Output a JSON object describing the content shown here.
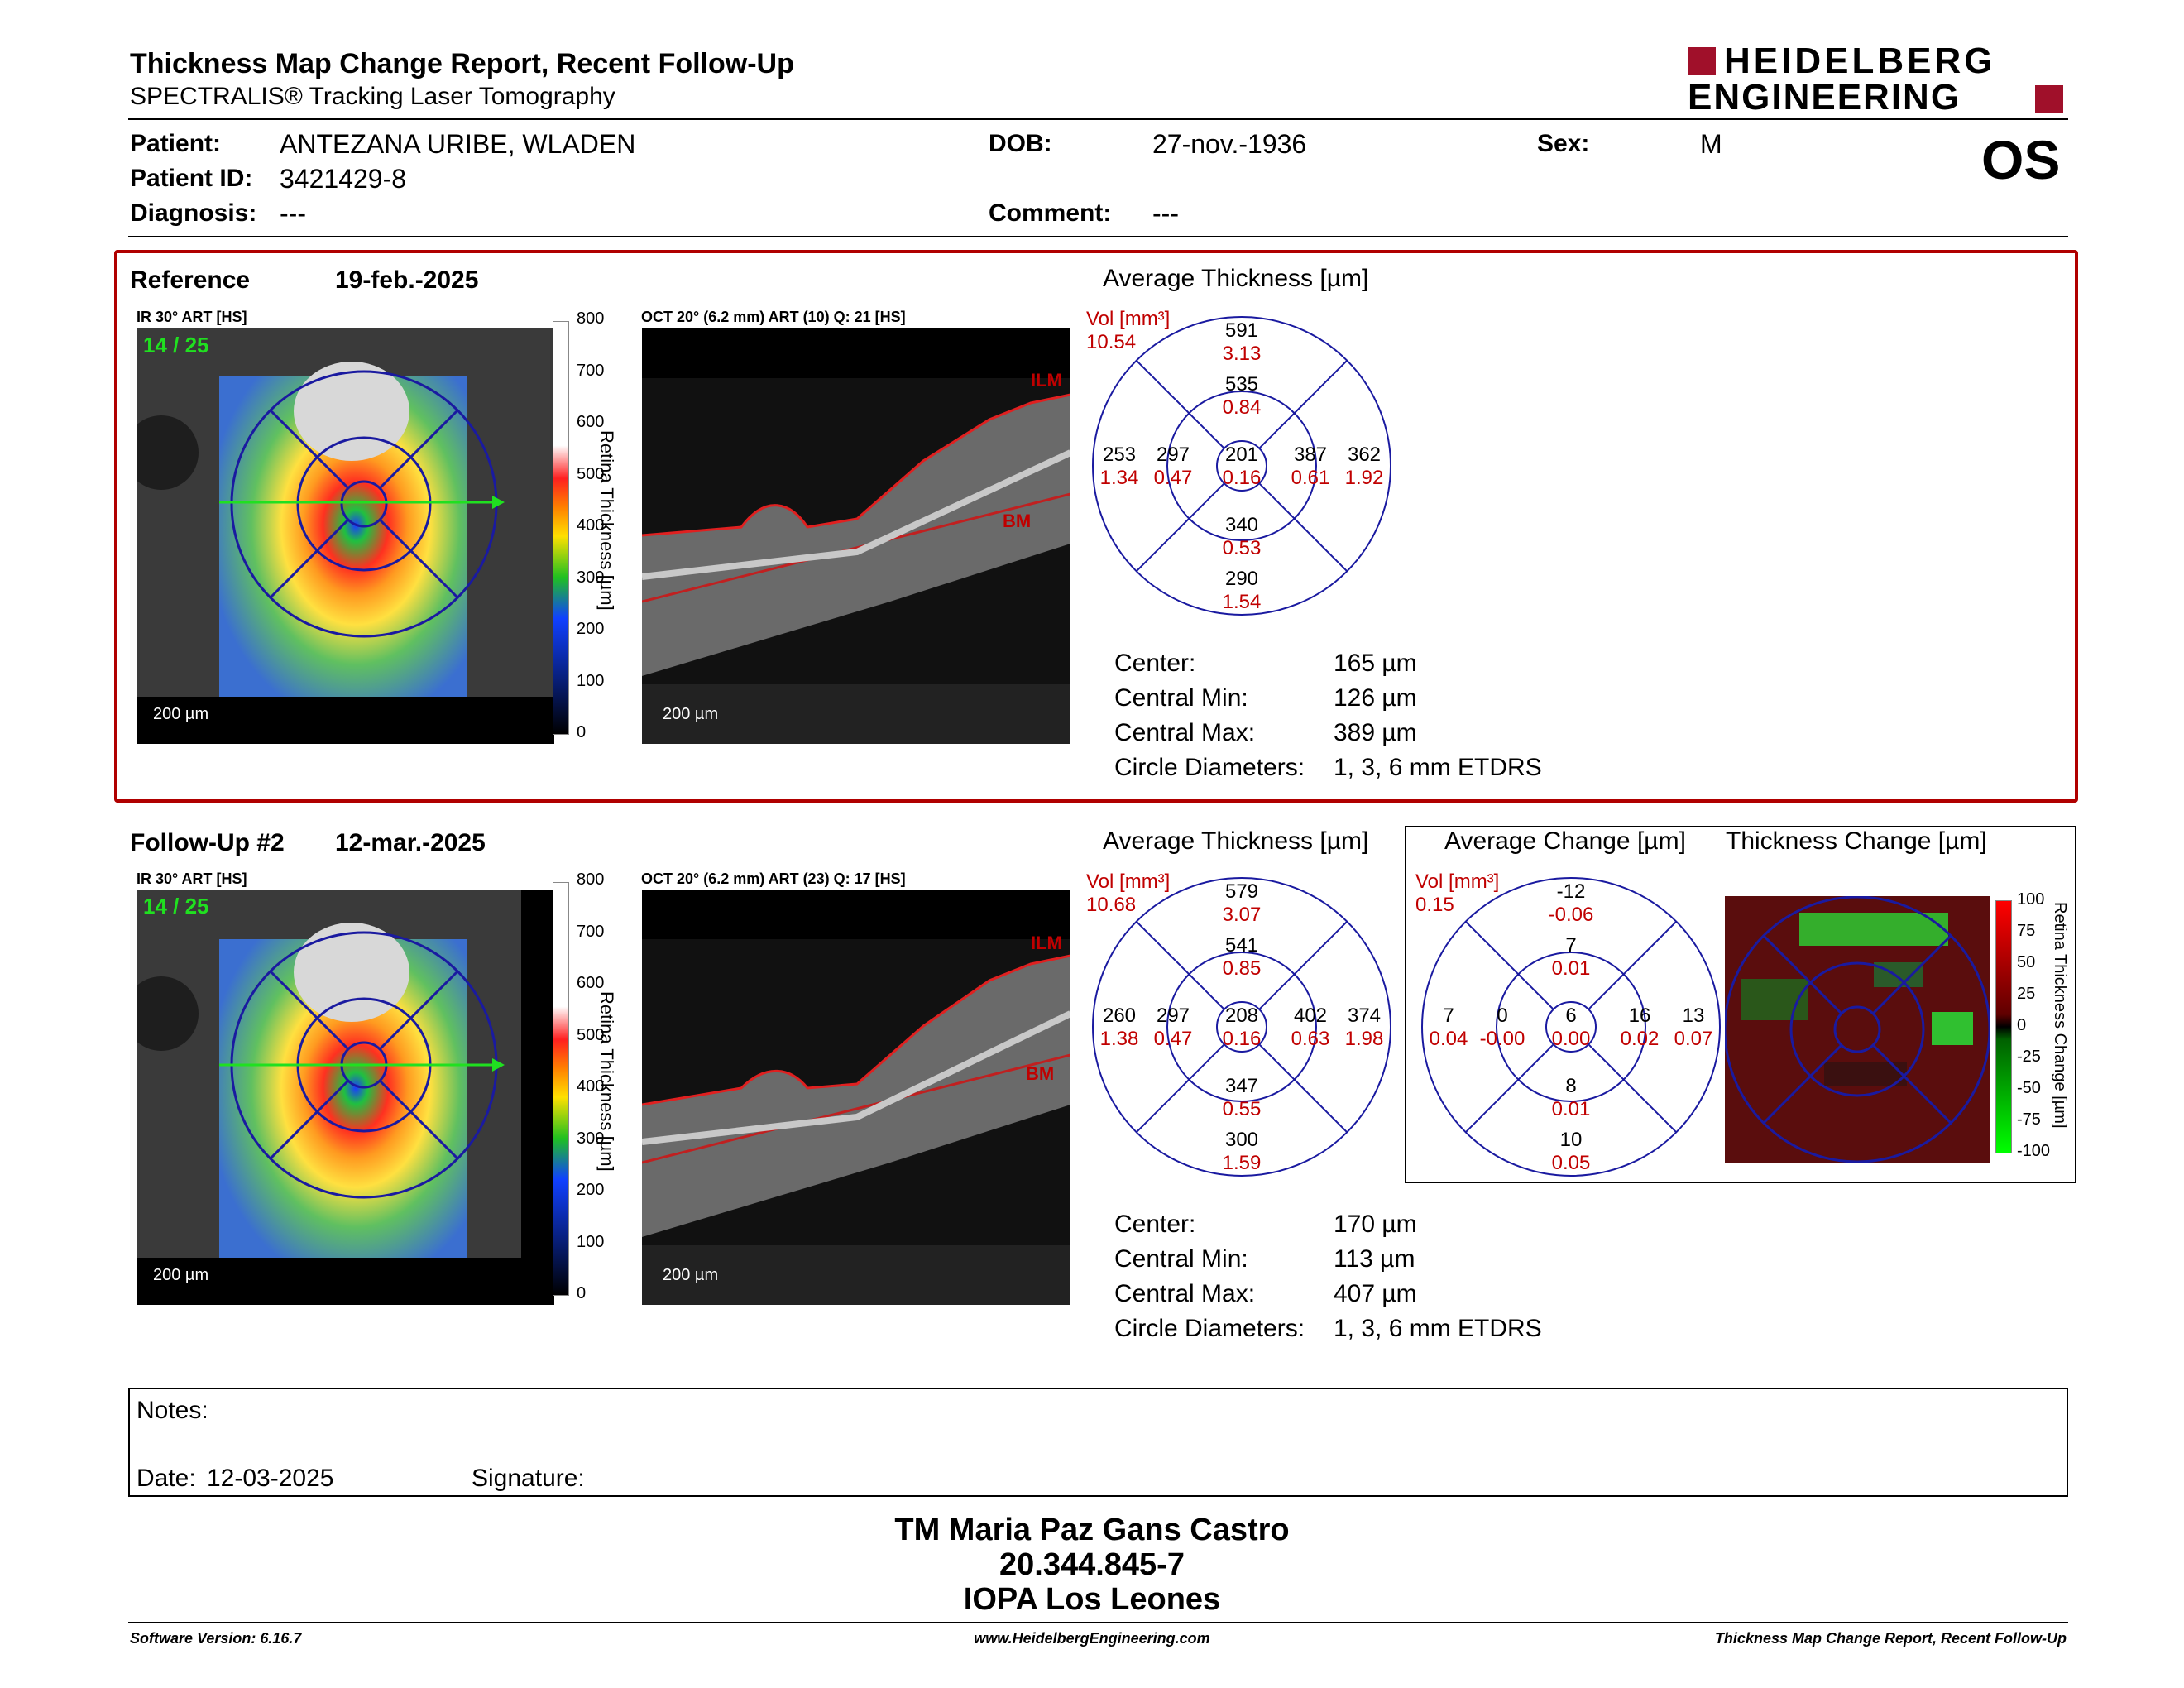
{
  "header": {
    "title": "Thickness Map Change Report, Recent Follow-Up",
    "subtitle": "SPECTRALIS® Tracking Laser Tomography",
    "logo_line1": "HEIDELBERG",
    "logo_line2": "ENGINEERING",
    "eye": "OS"
  },
  "patient": {
    "patient_label": "Patient:",
    "patient_value": "ANTEZANA URIBE, WLADEN",
    "id_label": "Patient ID:",
    "id_value": "3421429-8",
    "diagnosis_label": "Diagnosis:",
    "diagnosis_value": "---",
    "dob_label": "DOB:",
    "dob_value": "27-nov.-1936",
    "comment_label": "Comment:",
    "comment_value": "---",
    "sex_label": "Sex:",
    "sex_value": "M"
  },
  "reference": {
    "label": "Reference",
    "date": "19-feb.-2025",
    "ir_title": "IR 30° ART [HS]",
    "frame": "14 / 25",
    "oct_title": "OCT 20° (6.2 mm) ART (10) Q: 21 [HS]",
    "scale": "200 µm",
    "avg_title": "Average Thickness [µm]",
    "vol_label": "Vol [mm³]",
    "vol_value": "10.54",
    "etdrs": {
      "outer_sup": [
        "591",
        "3.13"
      ],
      "inner_sup": [
        "535",
        "0.84"
      ],
      "outer_nas": [
        "253",
        "1.34"
      ],
      "inner_nas": [
        "297",
        "0.47"
      ],
      "center": [
        "201",
        "0.16"
      ],
      "inner_temp": [
        "387",
        "0.61"
      ],
      "outer_temp": [
        "362",
        "1.92"
      ],
      "inner_inf": [
        "340",
        "0.53"
      ],
      "outer_inf": [
        "290",
        "1.54"
      ]
    },
    "stats": {
      "center_label": "Center:",
      "center_value": "165 µm",
      "min_label": "Central Min:",
      "min_value": "126 µm",
      "max_label": "Central Max:",
      "max_value": "389 µm",
      "circ_label": "Circle Diameters:",
      "circ_value": "1, 3, 6 mm ETDRS"
    }
  },
  "followup": {
    "label": "Follow-Up #2",
    "date": "12-mar.-2025",
    "ir_title": "IR 30° ART [HS]",
    "frame": "14 / 25",
    "oct_title": "OCT 20° (6.2 mm) ART (23) Q: 17 [HS]",
    "scale": "200 µm",
    "avg_title": "Average Thickness [µm]",
    "vol_label": "Vol [mm³]",
    "vol_value": "10.68",
    "etdrs": {
      "outer_sup": [
        "579",
        "3.07"
      ],
      "inner_sup": [
        "541",
        "0.85"
      ],
      "outer_nas": [
        "260",
        "1.38"
      ],
      "inner_nas": [
        "297",
        "0.47"
      ],
      "center": [
        "208",
        "0.16"
      ],
      "inner_temp": [
        "402",
        "0.63"
      ],
      "outer_temp": [
        "374",
        "1.98"
      ],
      "inner_inf": [
        "347",
        "0.55"
      ],
      "outer_inf": [
        "300",
        "1.59"
      ]
    },
    "change_title": "Average Change [µm]",
    "change_vol_label": "Vol [mm³]",
    "change_vol_value": "0.15",
    "change_etdrs": {
      "outer_sup": [
        "-12",
        "-0.06"
      ],
      "inner_sup": [
        "7",
        "0.01"
      ],
      "outer_nas": [
        "7",
        "0.04"
      ],
      "inner_nas": [
        "0",
        "-0.00"
      ],
      "center": [
        "6",
        "0.00"
      ],
      "inner_temp": [
        "16",
        "0.02"
      ],
      "outer_temp": [
        "13",
        "0.07"
      ],
      "inner_inf": [
        "8",
        "0.01"
      ],
      "outer_inf": [
        "10",
        "0.05"
      ]
    },
    "thick_change_title": "Thickness Change [µm]",
    "stats": {
      "center_label": "Center:",
      "center_value": "170 µm",
      "min_label": "Central Min:",
      "min_value": "113 µm",
      "max_label": "Central Max:",
      "max_value": "407 µm",
      "circ_label": "Circle Diameters:",
      "circ_value": "1, 3, 6 mm ETDRS"
    }
  },
  "colorbar": {
    "ticks": [
      "800",
      "700",
      "600",
      "500",
      "400",
      "300",
      "200",
      "100",
      "0"
    ],
    "label": "Retina Thickness [µm]"
  },
  "change_colorbar": {
    "ticks": [
      "100",
      "75",
      "50",
      "25",
      "0",
      "-25",
      "-50",
      "-75",
      "-100"
    ],
    "label": "Retina Thickness Change [µm]"
  },
  "oct_labels": {
    "ilm": "ILM",
    "bm": "BM"
  },
  "notes": {
    "notes_label": "Notes:",
    "date_label": "Date:",
    "date_value": "12-03-2025",
    "signature_label": "Signature:"
  },
  "stamp": {
    "line1": "TM Maria Paz Gans Castro",
    "line2": "20.344.845-7",
    "line3": "IOPA Los Leones"
  },
  "footer": {
    "software": "Software Version: 6.16.7",
    "url": "www.HeidelbergEngineering.com",
    "report": "Thickness Map Change Report, Recent Follow-Up"
  },
  "colors": {
    "accent_red": "#b00000",
    "etdrs_blue": "#1a1aa0"
  }
}
